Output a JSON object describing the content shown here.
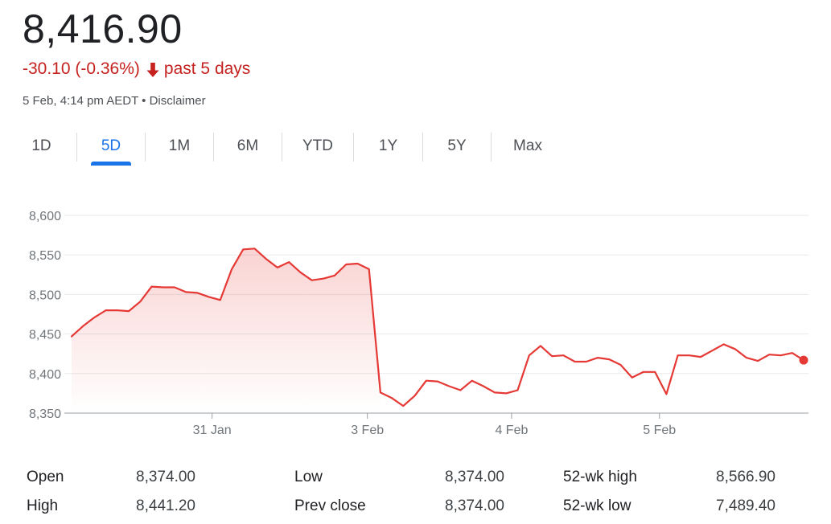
{
  "header": {
    "price": "8,416.90",
    "change": "-30.10 (-0.36%)",
    "change_period": "past 5 days",
    "timestamp": "5 Feb, 4:14 pm AEDT",
    "separator": "•",
    "disclaimer": "Disclaimer"
  },
  "tabs": [
    {
      "label": "1D",
      "active": false
    },
    {
      "label": "5D",
      "active": true
    },
    {
      "label": "1M",
      "active": false
    },
    {
      "label": "6M",
      "active": false
    },
    {
      "label": "YTD",
      "active": false
    },
    {
      "label": "1Y",
      "active": false
    },
    {
      "label": "5Y",
      "active": false
    },
    {
      "label": "Max",
      "active": false
    }
  ],
  "colors": {
    "line": "#e53935",
    "fill_top": "#e53935",
    "negative": "#c5221f",
    "accent": "#1a73e8",
    "grid": "#e8eaed"
  },
  "chart_data": {
    "type": "area",
    "ylim": [
      8350,
      8600
    ],
    "yticks": [
      8350,
      8400,
      8450,
      8500,
      8550,
      8600
    ],
    "ytick_labels": [
      "8,350",
      "8,400",
      "8,450",
      "8,500",
      "8,550",
      "8,600"
    ],
    "x_index_range": [
      0,
      99
    ],
    "xtick_labels": [
      "31 Jan",
      "3 Feb",
      "4 Feb",
      "5 Feb"
    ],
    "xtick_index": [
      19,
      40,
      59.5,
      79.5
    ],
    "grid": true,
    "series": [
      {
        "values": [
          8447,
          8460,
          8471,
          8480,
          8480,
          8479,
          8491,
          8510,
          8509,
          8509,
          8503,
          8502,
          8497,
          8493,
          8532,
          8557,
          8558,
          8545,
          8534,
          8541,
          8528,
          8518,
          8520,
          8524,
          8538,
          8539,
          8532,
          8376,
          8369,
          8359,
          8372,
          8391,
          8390,
          8384,
          8379,
          8391,
          8384,
          8376,
          8375,
          8379,
          8423,
          8435,
          8422,
          8423,
          8415,
          8415,
          8420,
          8418,
          8411,
          8395,
          8402,
          8402,
          8374,
          8423,
          8423,
          8421,
          8429,
          8437,
          8431,
          8420,
          8416,
          8424,
          8423,
          8426,
          8416.9
        ]
      }
    ]
  },
  "stats": [
    {
      "label": "Open",
      "value": "8,374.00"
    },
    {
      "label": "High",
      "value": "8,441.20"
    },
    {
      "label": "Low",
      "value": "8,374.00"
    },
    {
      "label": "Prev close",
      "value": "8,374.00"
    },
    {
      "label": "52-wk high",
      "value": "8,566.90"
    },
    {
      "label": "52-wk low",
      "value": "7,489.40"
    }
  ]
}
